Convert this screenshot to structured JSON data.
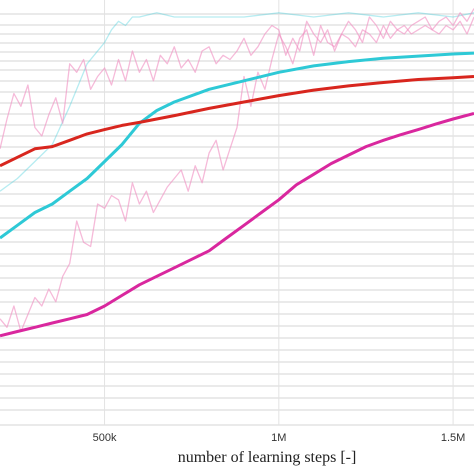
{
  "chart_data": {
    "type": "line",
    "xlabel": "number of learning steps [-]",
    "x_ticks": [
      {
        "value": 500000,
        "label": "500k"
      },
      {
        "value": 1000000,
        "label": "1M"
      },
      {
        "value": 1500000,
        "label": "1.5M"
      }
    ],
    "xlim": [
      200000,
      1560000
    ],
    "ylim": [
      0,
      100
    ],
    "grid": true,
    "series": [
      {
        "color": "#2ec9d6",
        "opacity": 0.35,
        "width": 1.3,
        "x": [
          200000,
          250000,
          300000,
          350000,
          400000,
          450000,
          500000,
          520000,
          540000,
          560000,
          580000,
          600000,
          650000,
          700000,
          800000,
          900000,
          1000000,
          1100000,
          1200000,
          1300000,
          1400000,
          1500000,
          1560000
        ],
        "y": [
          55,
          58,
          62,
          66,
          75,
          85,
          90,
          93,
          95,
          94,
          96,
          96,
          97,
          96,
          96,
          96,
          97,
          96,
          97,
          96,
          97,
          96,
          97
        ]
      },
      {
        "color": "#f08cc0",
        "opacity": 0.6,
        "width": 1.3,
        "x": [
          200000,
          220000,
          240000,
          260000,
          280000,
          300000,
          320000,
          340000,
          360000,
          380000,
          400000,
          420000,
          440000,
          460000,
          480000,
          500000,
          520000,
          540000,
          560000,
          580000,
          600000,
          620000,
          640000,
          660000,
          680000,
          700000,
          720000,
          740000,
          760000,
          780000,
          800000,
          820000,
          840000,
          860000,
          880000,
          900000,
          920000,
          940000,
          960000,
          980000,
          1000000,
          1020000,
          1040000,
          1060000,
          1080000,
          1100000,
          1120000,
          1140000,
          1160000,
          1180000,
          1200000,
          1220000,
          1240000,
          1260000,
          1280000,
          1300000,
          1320000,
          1340000,
          1360000,
          1380000,
          1400000,
          1420000,
          1440000,
          1460000,
          1480000,
          1500000,
          1520000,
          1540000,
          1560000
        ],
        "y": [
          65,
          72,
          78,
          75,
          80,
          70,
          68,
          73,
          77,
          71,
          85,
          83,
          86,
          79,
          82,
          84,
          80,
          86,
          81,
          88,
          83,
          86,
          81,
          87,
          85,
          89,
          84,
          86,
          83,
          88,
          89,
          85,
          87,
          86,
          88,
          91,
          87,
          89,
          92,
          94,
          93,
          87,
          91,
          88,
          95,
          92,
          90,
          93,
          88,
          92,
          91,
          89,
          93,
          92,
          90,
          94,
          91,
          93,
          94,
          92,
          93,
          94,
          93,
          92,
          94,
          93,
          95,
          92,
          96
        ]
      },
      {
        "color": "#f08cc0",
        "opacity": 0.6,
        "width": 1.3,
        "x": [
          200000,
          220000,
          240000,
          260000,
          280000,
          300000,
          320000,
          340000,
          360000,
          380000,
          400000,
          420000,
          440000,
          460000,
          480000,
          500000,
          520000,
          540000,
          560000,
          580000,
          600000,
          620000,
          640000,
          660000,
          680000,
          700000,
          720000,
          740000,
          760000,
          780000,
          800000,
          820000,
          840000,
          860000,
          880000,
          900000,
          920000,
          940000,
          960000,
          980000,
          1000000,
          1020000,
          1040000,
          1060000,
          1080000,
          1100000,
          1120000,
          1140000,
          1160000,
          1180000,
          1200000,
          1220000,
          1240000,
          1260000,
          1280000,
          1300000,
          1320000,
          1340000,
          1360000,
          1380000,
          1400000,
          1420000,
          1440000,
          1460000,
          1480000,
          1500000,
          1520000,
          1540000,
          1560000
        ],
        "y": [
          25,
          23,
          28,
          22,
          26,
          30,
          28,
          32,
          29,
          35,
          38,
          48,
          43,
          42,
          52,
          51,
          54,
          53,
          48,
          57,
          52,
          55,
          50,
          53,
          56,
          58,
          60,
          55,
          61,
          57,
          64,
          67,
          60,
          65,
          70,
          82,
          75,
          83,
          79,
          86,
          92,
          89,
          85,
          91,
          93,
          87,
          94,
          90,
          89,
          92,
          95,
          93,
          90,
          96,
          94,
          91,
          95,
          93,
          92,
          94,
          95,
          96,
          93,
          95,
          96,
          94,
          97,
          95,
          98
        ]
      },
      {
        "color": "#2ec9d6",
        "opacity": 1,
        "width": 3,
        "x": [
          200000,
          250000,
          300000,
          350000,
          400000,
          450000,
          500000,
          550000,
          600000,
          650000,
          700000,
          800000,
          900000,
          1000000,
          1100000,
          1200000,
          1300000,
          1400000,
          1500000,
          1560000
        ],
        "y": [
          44,
          47,
          50,
          52,
          55,
          58,
          62,
          66,
          71,
          74,
          76,
          79,
          81,
          83,
          84.5,
          85.5,
          86.3,
          86.8,
          87.3,
          87.5
        ]
      },
      {
        "color": "#d8261e",
        "opacity": 1,
        "width": 3,
        "x": [
          200000,
          250000,
          300000,
          350000,
          400000,
          450000,
          500000,
          550000,
          600000,
          650000,
          700000,
          800000,
          900000,
          1000000,
          1100000,
          1200000,
          1300000,
          1400000,
          1500000,
          1560000
        ],
        "y": [
          61,
          63,
          65,
          65.5,
          67,
          68.5,
          69.5,
          70.5,
          71.2,
          72,
          72.8,
          74.5,
          76,
          77.5,
          78.8,
          79.8,
          80.6,
          81.3,
          81.7,
          82
        ]
      },
      {
        "color": "#d9279e",
        "opacity": 1,
        "width": 3,
        "x": [
          200000,
          250000,
          300000,
          350000,
          400000,
          450000,
          500000,
          550000,
          600000,
          650000,
          700000,
          750000,
          800000,
          850000,
          900000,
          950000,
          1000000,
          1050000,
          1100000,
          1150000,
          1200000,
          1250000,
          1300000,
          1350000,
          1400000,
          1450000,
          1500000,
          1560000
        ],
        "y": [
          21,
          22,
          23,
          24,
          25,
          26,
          28,
          30.5,
          33,
          35,
          37,
          39,
          41,
          44,
          47,
          50,
          53,
          56.5,
          59,
          61.5,
          63.5,
          65.5,
          67,
          68.3,
          69.5,
          70.8,
          72,
          73.3
        ]
      }
    ]
  }
}
